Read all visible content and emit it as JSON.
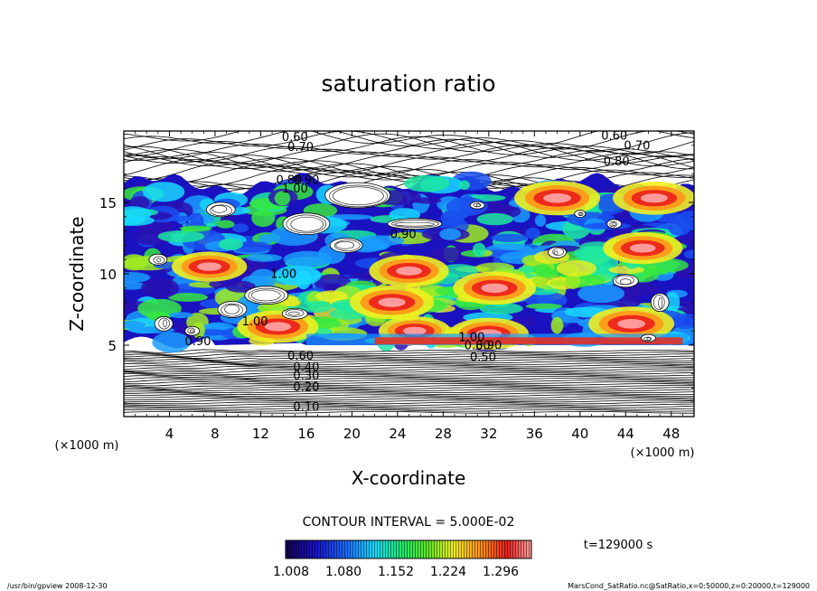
{
  "chart_data": {
    "type": "heatmap",
    "title": "saturation ratio",
    "xlabel": "X-coordinate",
    "ylabel": "Z-coordinate",
    "x_unit_left": "(×1000 m)",
    "x_unit_right": "(×1000 m)",
    "xlim": [
      0,
      50
    ],
    "ylim": [
      0,
      20
    ],
    "x_ticks": [
      4,
      8,
      12,
      16,
      20,
      24,
      28,
      32,
      36,
      40,
      44,
      48
    ],
    "y_ticks": [
      5,
      10,
      15
    ],
    "contour_interval_label": "CONTOUR INTERVAL = 5.000E-02",
    "time_label": "t=129000 s",
    "colorbar": {
      "tick_labels": [
        "1.008",
        "1.080",
        "1.152",
        "1.224",
        "1.296"
      ],
      "range": [
        1.008,
        1.296
      ]
    },
    "contour_labels": [
      {
        "text": "0.60",
        "x": 15.0,
        "z": 19.3
      },
      {
        "text": "0.70",
        "x": 15.5,
        "z": 18.6
      },
      {
        "text": "0.80",
        "x": 14.5,
        "z": 16.3
      },
      {
        "text": "0.90",
        "x": 16.0,
        "z": 16.3
      },
      {
        "text": "1.00",
        "x": 15.0,
        "z": 15.7
      },
      {
        "text": "0.60",
        "x": 43.0,
        "z": 19.4
      },
      {
        "text": "0.70",
        "x": 45.0,
        "z": 18.7
      },
      {
        "text": "0.80",
        "x": 43.2,
        "z": 17.6
      },
      {
        "text": "0.90",
        "x": 24.5,
        "z": 12.5
      },
      {
        "text": "1.00",
        "x": 14.0,
        "z": 9.7
      },
      {
        "text": "1.00",
        "x": 11.5,
        "z": 6.4
      },
      {
        "text": "0.90",
        "x": 6.5,
        "z": 5.0
      },
      {
        "text": "0.60",
        "x": 15.5,
        "z": 4.0
      },
      {
        "text": "0.40",
        "x": 16.0,
        "z": 3.2
      },
      {
        "text": "0.30",
        "x": 16.0,
        "z": 2.6
      },
      {
        "text": "0.20",
        "x": 16.0,
        "z": 1.8
      },
      {
        "text": "0.10",
        "x": 16.0,
        "z": 0.4
      },
      {
        "text": "1.00",
        "x": 30.5,
        "z": 5.3
      },
      {
        "text": "0.80",
        "x": 31.0,
        "z": 4.7
      },
      {
        "text": "0.90",
        "x": 32.0,
        "z": 4.7
      },
      {
        "text": "0.50",
        "x": 31.5,
        "z": 3.9
      }
    ],
    "high_regions": [
      {
        "x": 23.5,
        "z": 8.0,
        "level": 1.28
      },
      {
        "x": 25.0,
        "z": 10.2,
        "level": 1.25
      },
      {
        "x": 32.5,
        "z": 9.0,
        "level": 1.27
      },
      {
        "x": 38.0,
        "z": 15.3,
        "level": 1.29
      },
      {
        "x": 44.5,
        "z": 6.5,
        "level": 1.29
      },
      {
        "x": 45.5,
        "z": 11.8,
        "level": 1.25
      },
      {
        "x": 46.5,
        "z": 15.3,
        "level": 1.27
      },
      {
        "x": 13.5,
        "z": 6.3,
        "level": 1.26
      },
      {
        "x": 7.5,
        "z": 10.5,
        "level": 1.22
      },
      {
        "x": 32.0,
        "z": 5.8,
        "level": 1.25
      },
      {
        "x": 25.5,
        "z": 6.0,
        "level": 1.2
      }
    ]
  },
  "footer": {
    "left": "/usr/bin/gpview   2008-12-30",
    "right": "MarsCond_SatRatio.nc@SatRatio,x=0:50000,z=0:20000,t=129000"
  }
}
